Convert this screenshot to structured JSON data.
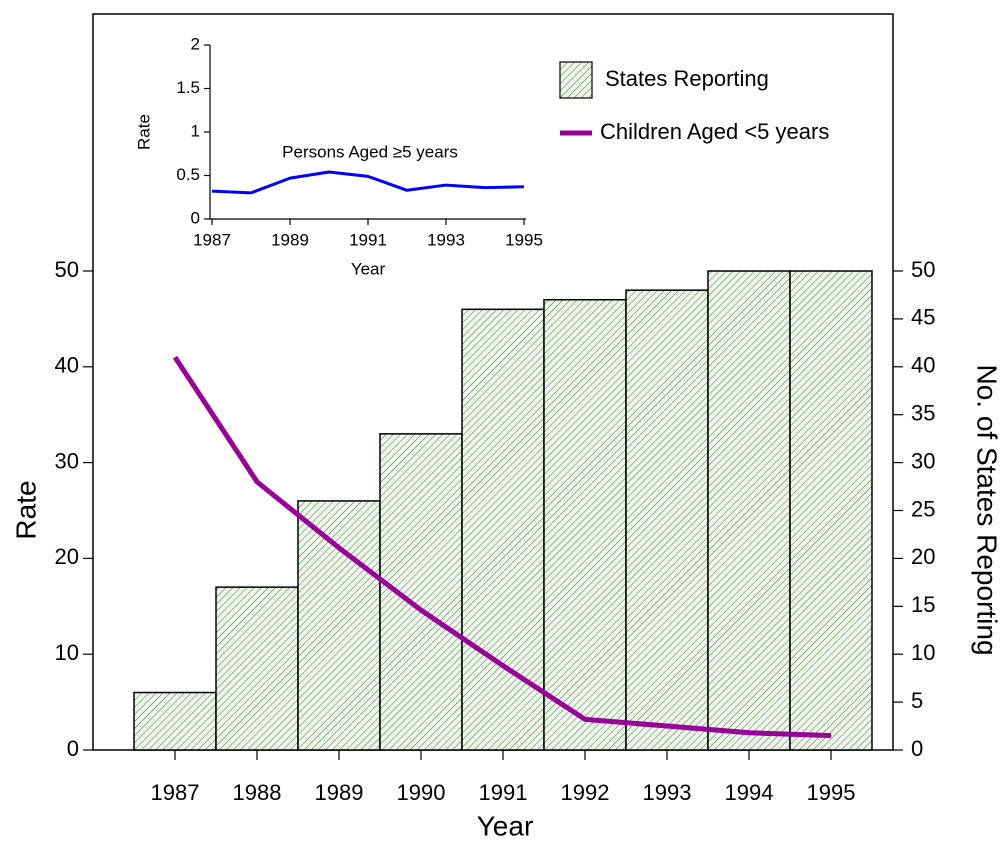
{
  "chart_data": [
    {
      "type": "bar",
      "categories": [
        "1987",
        "1988",
        "1989",
        "1990",
        "1991",
        "1992",
        "1993",
        "1994",
        "1995"
      ],
      "series": [
        {
          "name": "States Reporting",
          "type": "bar",
          "axis": "y2",
          "color": "#2f6a2f",
          "values": [
            6,
            17,
            26,
            33,
            46,
            47,
            48,
            50,
            50
          ]
        },
        {
          "name": "Children Aged <5 years",
          "type": "line",
          "axis": "y",
          "color": "#990099",
          "values": [
            41,
            28,
            21.1,
            14.6,
            8.8,
            3.2,
            2.5,
            1.8,
            1.5
          ]
        }
      ],
      "xlabel": "Year",
      "ylabel": "Rate",
      "y2label": "No. of States Reporting",
      "ylim": [
        0,
        50
      ],
      "yticks": [
        0,
        10,
        20,
        30,
        40,
        50
      ],
      "y2lim": [
        0,
        50
      ],
      "y2ticks": [
        0,
        5,
        10,
        15,
        20,
        25,
        30,
        35,
        40,
        45,
        50
      ],
      "legend": "top-right"
    },
    {
      "type": "line",
      "x": [
        1987,
        1988,
        1989,
        1990,
        1991,
        1992,
        1993,
        1994,
        1995
      ],
      "series": [
        {
          "name": "Persons Aged ≥5 years",
          "color": "#0000ff",
          "values": [
            0.32,
            0.3,
            0.47,
            0.54,
            0.49,
            0.33,
            0.39,
            0.36,
            0.37
          ]
        }
      ],
      "annotation": "Persons Aged ≥5 years",
      "xlabel": "Year",
      "ylabel": "Rate",
      "xlim": [
        1987,
        1995
      ],
      "xticks": [
        1987,
        1989,
        1991,
        1993,
        1995
      ],
      "ylim": [
        0,
        2
      ],
      "yticks": [
        0,
        0.5,
        1,
        1.5,
        2
      ]
    }
  ]
}
